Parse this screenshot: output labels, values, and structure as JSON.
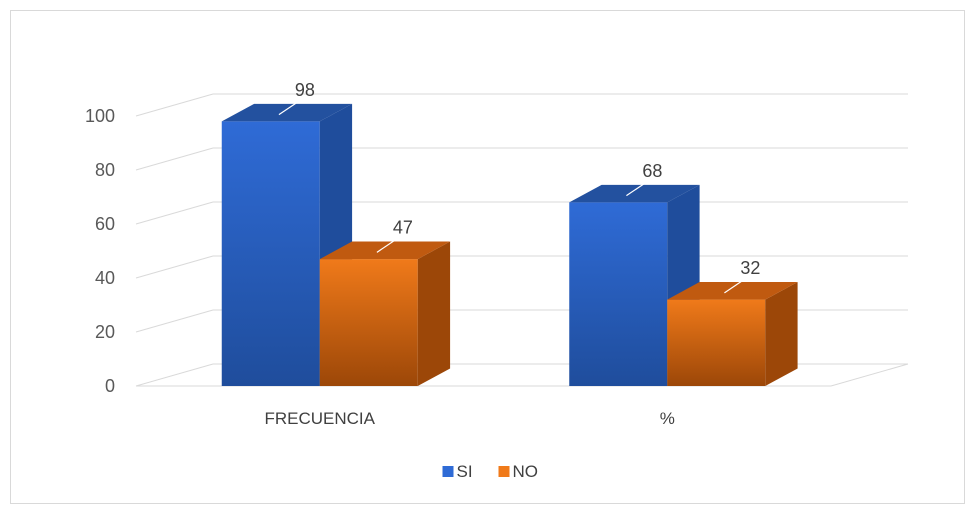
{
  "chart_data": {
    "type": "bar",
    "title": "",
    "xlabel": "",
    "ylabel": "",
    "categories": [
      "FRECUENCIA",
      "%"
    ],
    "series": [
      {
        "name": "SI",
        "values": [
          98,
          68
        ],
        "color": "#2f6bd6",
        "side_color": "#1f4d9c",
        "top_color": "#23519f"
      },
      {
        "name": "NO",
        "values": [
          47,
          32
        ],
        "color": "#f07a1a",
        "side_color": "#9c4708",
        "top_color": "#c05a10"
      }
    ],
    "ylim": [
      0,
      100
    ],
    "yticks": [
      "0",
      "20",
      "40",
      "60",
      "80",
      "100"
    ],
    "grid": true,
    "legend_position": "bottom",
    "data_labels": true
  }
}
